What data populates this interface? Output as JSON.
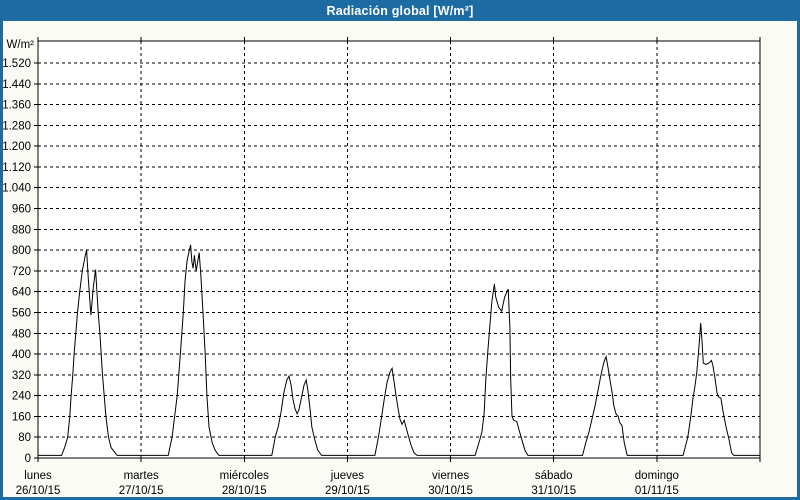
{
  "window": {
    "title": "Radiación global [W/m²]"
  },
  "colors": {
    "titlebar_bg": "#1d6ba3",
    "titlebar_text": "#ffffff",
    "window_border": "#1d6ba3",
    "background": "#fbfbf5",
    "plot_background": "#ffffff",
    "grid_color": "#000000",
    "line_color": "#000000",
    "label_color": "#000000"
  },
  "chart_data": {
    "type": "line",
    "title": "Radiación global [W/m²]",
    "ylabel": "W/m²",
    "ylim": [
      0,
      1520
    ],
    "ytick_step": 80,
    "y_tick_labels": [
      "0",
      "80",
      "160",
      "240",
      "320",
      "400",
      "480",
      "560",
      "640",
      "720",
      "800",
      "880",
      "960",
      "1.040",
      "1.120",
      "1.200",
      "1.280",
      "1.360",
      "1.440",
      "1.520"
    ],
    "x_hours_total": 168,
    "grid": "dashed",
    "legend_position": "none",
    "days": [
      {
        "name": "lunes",
        "date": "26/10/15"
      },
      {
        "name": "martes",
        "date": "27/10/15"
      },
      {
        "name": "miércoles",
        "date": "28/10/15"
      },
      {
        "name": "jueves",
        "date": "29/10/15"
      },
      {
        "name": "viernes",
        "date": "30/10/15"
      },
      {
        "name": "sábado",
        "date": "31/10/15"
      },
      {
        "name": "domingo",
        "date": "01/11/15"
      }
    ],
    "series": [
      {
        "name": "Radiación global",
        "unit": "W/m²",
        "points_t_hours_value": [
          [
            0,
            10
          ],
          [
            5.5,
            10
          ],
          [
            6.2,
            40
          ],
          [
            6.9,
            80
          ],
          [
            7.4,
            160
          ],
          [
            7.7,
            240
          ],
          [
            8.1,
            320
          ],
          [
            8.4,
            400
          ],
          [
            8.8,
            480
          ],
          [
            9.2,
            560
          ],
          [
            9.7,
            640
          ],
          [
            10.3,
            720
          ],
          [
            11.0,
            780
          ],
          [
            11.3,
            800
          ],
          [
            11.7,
            690
          ],
          [
            12.3,
            550
          ],
          [
            12.9,
            660
          ],
          [
            13.4,
            725
          ],
          [
            14.0,
            560
          ],
          [
            14.4,
            480
          ],
          [
            14.7,
            400
          ],
          [
            15.0,
            320
          ],
          [
            15.4,
            240
          ],
          [
            15.8,
            160
          ],
          [
            16.4,
            80
          ],
          [
            17.0,
            40
          ],
          [
            18.4,
            10
          ],
          [
            30.3,
            10
          ],
          [
            31.2,
            80
          ],
          [
            32.4,
            240
          ],
          [
            33.3,
            440
          ],
          [
            33.8,
            560
          ],
          [
            34.2,
            680
          ],
          [
            34.7,
            760
          ],
          [
            35.1,
            790
          ],
          [
            35.5,
            820
          ],
          [
            35.8,
            755
          ],
          [
            36.1,
            730
          ],
          [
            36.4,
            780
          ],
          [
            36.8,
            720
          ],
          [
            37.2,
            760
          ],
          [
            37.5,
            790
          ],
          [
            37.9,
            700
          ],
          [
            38.4,
            560
          ],
          [
            38.9,
            400
          ],
          [
            39.3,
            240
          ],
          [
            39.8,
            120
          ],
          [
            40.5,
            60
          ],
          [
            41.2,
            30
          ],
          [
            42.1,
            10
          ],
          [
            54.4,
            10
          ],
          [
            55.2,
            80
          ],
          [
            55.9,
            120
          ],
          [
            56.6,
            180
          ],
          [
            57.2,
            250
          ],
          [
            57.9,
            300
          ],
          [
            58.4,
            315
          ],
          [
            58.9,
            280
          ],
          [
            59.3,
            230
          ],
          [
            59.8,
            190
          ],
          [
            60.3,
            170
          ],
          [
            60.7,
            185
          ],
          [
            61.4,
            240
          ],
          [
            61.9,
            280
          ],
          [
            62.4,
            300
          ],
          [
            62.8,
            260
          ],
          [
            63.3,
            190
          ],
          [
            63.7,
            120
          ],
          [
            64.4,
            70
          ],
          [
            65.1,
            30
          ],
          [
            66.0,
            10
          ],
          [
            78.4,
            10
          ],
          [
            79.2,
            80
          ],
          [
            79.8,
            140
          ],
          [
            80.5,
            220
          ],
          [
            81.2,
            290
          ],
          [
            81.9,
            330
          ],
          [
            82.4,
            345
          ],
          [
            82.8,
            300
          ],
          [
            83.3,
            240
          ],
          [
            83.8,
            190
          ],
          [
            84.2,
            150
          ],
          [
            84.7,
            130
          ],
          [
            85.2,
            145
          ],
          [
            85.6,
            120
          ],
          [
            86.1,
            90
          ],
          [
            86.8,
            50
          ],
          [
            87.5,
            20
          ],
          [
            88.2,
            10
          ],
          [
            101.7,
            10
          ],
          [
            102.8,
            70
          ],
          [
            103.3,
            100
          ],
          [
            103.8,
            170
          ],
          [
            104.2,
            300
          ],
          [
            104.7,
            420
          ],
          [
            105.2,
            520
          ],
          [
            105.6,
            600
          ],
          [
            106.2,
            670
          ],
          [
            106.5,
            620
          ],
          [
            107.2,
            580
          ],
          [
            107.9,
            565
          ],
          [
            108.2,
            590
          ],
          [
            108.6,
            620
          ],
          [
            109.4,
            650
          ],
          [
            109.8,
            500
          ],
          [
            110.0,
            300
          ],
          [
            110.3,
            160
          ],
          [
            110.7,
            145
          ],
          [
            111.4,
            140
          ],
          [
            111.9,
            110
          ],
          [
            112.6,
            70
          ],
          [
            113.3,
            30
          ],
          [
            114.0,
            10
          ],
          [
            126.7,
            10
          ],
          [
            127.5,
            60
          ],
          [
            128.2,
            100
          ],
          [
            128.9,
            150
          ],
          [
            129.6,
            200
          ],
          [
            130.3,
            260
          ],
          [
            131.0,
            320
          ],
          [
            131.7,
            370
          ],
          [
            132.2,
            390
          ],
          [
            132.6,
            350
          ],
          [
            133.1,
            300
          ],
          [
            133.6,
            250
          ],
          [
            134.0,
            200
          ],
          [
            134.5,
            170
          ],
          [
            135.0,
            160
          ],
          [
            135.4,
            135
          ],
          [
            135.9,
            125
          ],
          [
            136.4,
            60
          ],
          [
            137.1,
            10
          ],
          [
            150.1,
            10
          ],
          [
            151.2,
            80
          ],
          [
            151.9,
            160
          ],
          [
            152.4,
            230
          ],
          [
            152.9,
            280
          ],
          [
            153.3,
            330
          ],
          [
            153.8,
            430
          ],
          [
            154.2,
            520
          ],
          [
            154.5,
            450
          ],
          [
            154.8,
            365
          ],
          [
            155.4,
            360
          ],
          [
            156.1,
            365
          ],
          [
            156.7,
            375
          ],
          [
            157.0,
            360
          ],
          [
            157.5,
            310
          ],
          [
            158.0,
            250
          ],
          [
            158.4,
            235
          ],
          [
            158.9,
            230
          ],
          [
            159.4,
            180
          ],
          [
            160.1,
            120
          ],
          [
            160.8,
            70
          ],
          [
            161.4,
            20
          ],
          [
            161.9,
            10
          ],
          [
            168,
            10
          ]
        ]
      }
    ]
  }
}
